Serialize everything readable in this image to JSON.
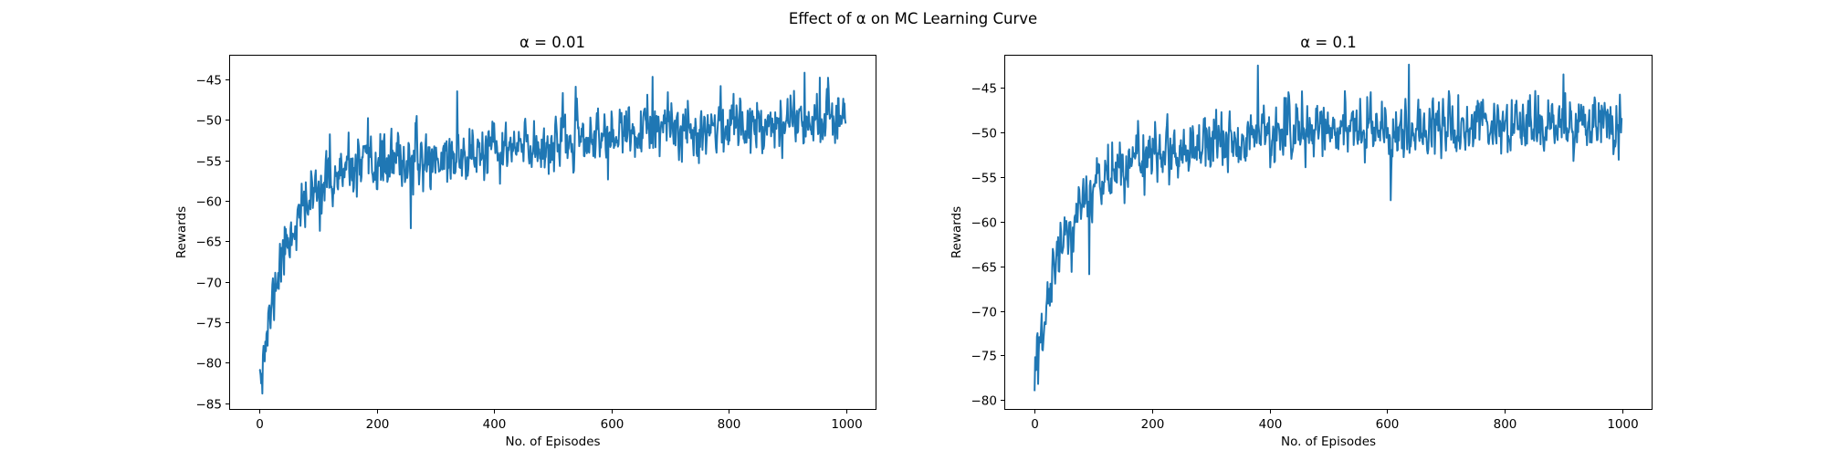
{
  "figure": {
    "suptitle": "Effect of α on MC Learning Curve"
  },
  "colors": {
    "series": "#1f77b4",
    "axes": "#000000",
    "background": "#ffffff"
  },
  "chart_data": [
    {
      "type": "line",
      "title": "α = 0.01",
      "xlabel": "No. of Episodes",
      "ylabel": "Rewards",
      "xlim": [
        -50,
        1050
      ],
      "ylim": [
        -85.7,
        -42.1
      ],
      "xticks": [
        0,
        200,
        400,
        600,
        800,
        1000
      ],
      "yticks": [
        -85,
        -80,
        -75,
        -70,
        -65,
        -60,
        -55,
        -50,
        -45
      ],
      "grid": false,
      "series": [
        {
          "points": 1000,
          "seed": 11,
          "profile": [
            [
              0,
              -79.0
            ],
            [
              10,
              -78.0
            ],
            [
              20,
              -73.5
            ],
            [
              30,
              -69.5
            ],
            [
              40,
              -66.5
            ],
            [
              60,
              -63.0
            ],
            [
              80,
              -60.5
            ],
            [
              100,
              -58.5
            ],
            [
              150,
              -56.5
            ],
            [
              200,
              -55.5
            ],
            [
              300,
              -54.8
            ],
            [
              400,
              -54.0
            ],
            [
              500,
              -53.0
            ],
            [
              600,
              -52.0
            ],
            [
              700,
              -51.2
            ],
            [
              800,
              -50.6
            ],
            [
              900,
              -50.0
            ],
            [
              1000,
              -49.5
            ]
          ],
          "noise_sd": 1.6,
          "samples": [
            [
              5,
              -83.8
            ],
            [
              2,
              -81.5
            ],
            [
              258,
              -63.4
            ],
            [
              337,
              -46.5
            ],
            [
              670,
              -44.7
            ],
            [
              929,
              -44.2
            ],
            [
              955,
              -44.8
            ],
            [
              120,
              -51.8
            ],
            [
              185,
              -49.8
            ]
          ]
        }
      ]
    },
    {
      "type": "line",
      "title": "α = 0.1",
      "xlabel": "No. of Episodes",
      "ylabel": "Rewards",
      "xlim": [
        -50,
        1050
      ],
      "ylim": [
        -81.0,
        -41.4
      ],
      "xticks": [
        0,
        200,
        400,
        600,
        800,
        1000
      ],
      "yticks": [
        -80,
        -75,
        -70,
        -65,
        -60,
        -55,
        -50,
        -45
      ],
      "grid": false,
      "series": [
        {
          "points": 1000,
          "seed": 29,
          "profile": [
            [
              0,
              -76.0
            ],
            [
              10,
              -73.5
            ],
            [
              20,
              -70.0
            ],
            [
              30,
              -66.5
            ],
            [
              40,
              -63.5
            ],
            [
              60,
              -60.0
            ],
            [
              80,
              -58.0
            ],
            [
              100,
              -56.3
            ],
            [
              150,
              -54.0
            ],
            [
              200,
              -52.5
            ],
            [
              300,
              -50.8
            ],
            [
              400,
              -50.0
            ],
            [
              500,
              -49.6
            ],
            [
              600,
              -49.6
            ],
            [
              700,
              -49.5
            ],
            [
              800,
              -49.3
            ],
            [
              900,
              -49.2
            ],
            [
              1000,
              -49.2
            ]
          ],
          "noise_sd": 1.5,
          "samples": [
            [
              0,
              -79.0
            ],
            [
              6,
              -78.2
            ],
            [
              93,
              -65.9
            ],
            [
              380,
              -42.5
            ],
            [
              637,
              -42.4
            ],
            [
              606,
              -57.6
            ],
            [
              900,
              -43.5
            ]
          ]
        }
      ]
    }
  ]
}
